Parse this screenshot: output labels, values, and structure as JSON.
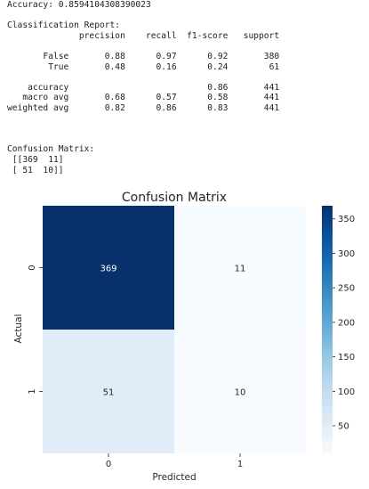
{
  "accuracy_line": "Accuracy: 0.8594104308390023",
  "report": {
    "heading": "Classification Report:",
    "header_row": "              precision    recall  f1-score   support",
    "rows": [
      "       False       0.88      0.97      0.92       380",
      "        True       0.48      0.16      0.24        61",
      "    accuracy                           0.86       441",
      "   macro avg       0.68      0.57      0.58       441",
      "weighted avg       0.82      0.86      0.83       441"
    ]
  },
  "matrix_text": {
    "heading": "Confusion Matrix:",
    "row1": " [[369  11]",
    "row2": " [ 51  10]]"
  },
  "chart_data": {
    "type": "heatmap",
    "title": "Confusion Matrix",
    "xlabel": "Predicted",
    "ylabel": "Actual",
    "x_categories": [
      "0",
      "1"
    ],
    "y_categories": [
      "0",
      "1"
    ],
    "values": [
      [
        369,
        11
      ],
      [
        51,
        10
      ]
    ],
    "colormap": "Blues",
    "colorbar": {
      "vmin": 10,
      "vmax": 369,
      "ticks": [
        "50",
        "100",
        "150",
        "200",
        "250",
        "300",
        "350"
      ]
    },
    "colors": {
      "max": "#08306b",
      "high": "#deebf7",
      "low": "#f7fbff",
      "light_text": "#ffffff",
      "dark_text": "#262626"
    }
  }
}
